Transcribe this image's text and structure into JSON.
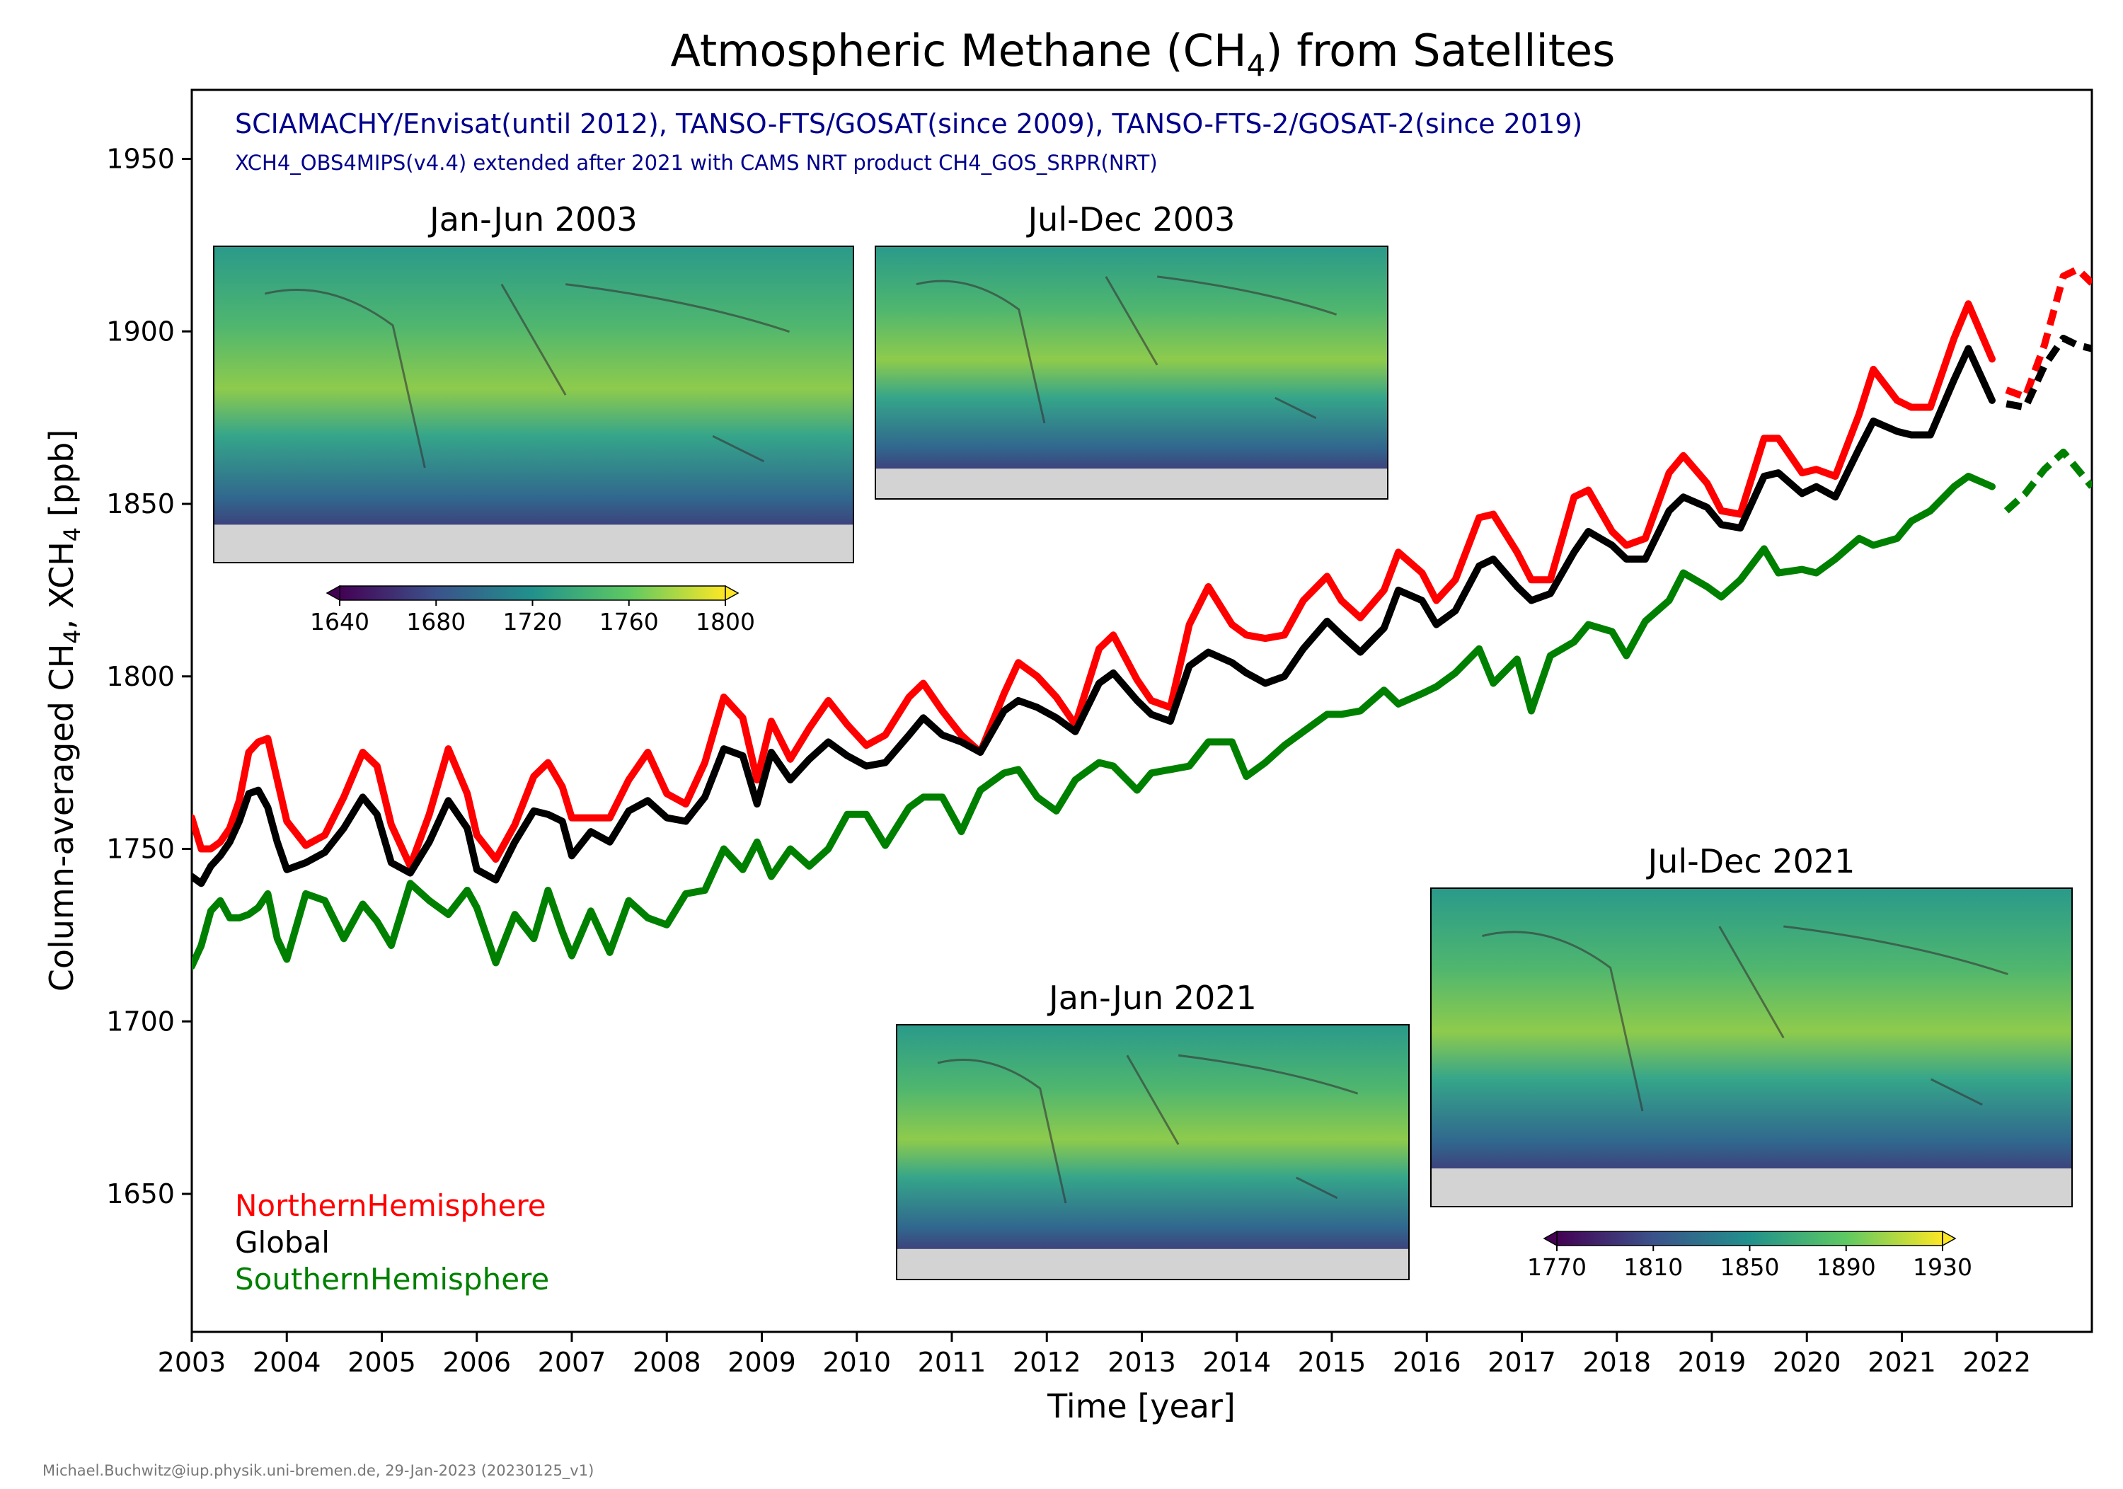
{
  "chart_data": {
    "type": "line",
    "title_prefix": "Atmospheric Methane (CH",
    "title_sub": "4",
    "title_suffix": ") from Satellites",
    "subtitle": "SCIAMACHY/Envisat(until 2012), TANSO-FTS/GOSAT(since 2009), TANSO-FTS-2/GOSAT-2(since 2019)",
    "subtitle2": "XCH4_OBS4MIPS(v4.4) extended after 2021 with CAMS NRT product CH4_GOS_SRPR(NRT)",
    "xlabel": "Time [year]",
    "ylabel_parts": [
      "Column-averaged CH",
      "4",
      ", XCH",
      "4",
      " [ppb]"
    ],
    "xlim": [
      2003,
      2023.0
    ],
    "ylim": [
      1610,
      1970
    ],
    "xticks": [
      "2003",
      "2004",
      "2005",
      "2006",
      "2007",
      "2008",
      "2009",
      "2010",
      "2011",
      "2012",
      "2013",
      "2014",
      "2015",
      "2016",
      "2017",
      "2018",
      "2019",
      "2020",
      "2021",
      "2022"
    ],
    "yticks": [
      1650,
      1700,
      1750,
      1800,
      1850,
      1900,
      1950
    ],
    "legend": [
      {
        "label": "NorthernHemisphere",
        "color": "#ff0000"
      },
      {
        "label": "Global",
        "color": "#000000"
      },
      {
        "label": "SouthernHemisphere",
        "color": "#008000"
      }
    ],
    "legend_position": "lower-left",
    "dashed_after": 2022.0,
    "series": [
      {
        "name": "NorthernHemisphere",
        "color": "#ff0000",
        "x": [
          2003.0,
          2003.1,
          2003.2,
          2003.3,
          2003.4,
          2003.5,
          2003.6,
          2003.7,
          2003.8,
          2003.9,
          2004.0,
          2004.2,
          2004.4,
          2004.6,
          2004.8,
          2004.95,
          2005.1,
          2005.3,
          2005.5,
          2005.7,
          2005.9,
          2006.0,
          2006.2,
          2006.4,
          2006.6,
          2006.75,
          2006.9,
          2007.0,
          2007.2,
          2007.4,
          2007.6,
          2007.8,
          2008.0,
          2008.2,
          2008.4,
          2008.6,
          2008.8,
          2008.95,
          2009.1,
          2009.3,
          2009.5,
          2009.7,
          2009.9,
          2010.1,
          2010.3,
          2010.55,
          2010.7,
          2010.9,
          2011.1,
          2011.3,
          2011.55,
          2011.7,
          2011.9,
          2012.1,
          2012.3,
          2012.55,
          2012.7,
          2012.95,
          2013.1,
          2013.3,
          2013.5,
          2013.7,
          2013.95,
          2014.1,
          2014.3,
          2014.5,
          2014.7,
          2014.95,
          2015.1,
          2015.3,
          2015.55,
          2015.7,
          2015.95,
          2016.1,
          2016.3,
          2016.55,
          2016.7,
          2016.95,
          2017.1,
          2017.3,
          2017.55,
          2017.7,
          2017.95,
          2018.1,
          2018.3,
          2018.55,
          2018.7,
          2018.95,
          2019.1,
          2019.3,
          2019.55,
          2019.7,
          2019.95,
          2020.1,
          2020.3,
          2020.55,
          2020.7,
          2020.95,
          2021.1,
          2021.3,
          2021.55,
          2021.7,
          2021.95,
          2022.1,
          2022.3,
          2022.5,
          2022.7,
          2022.85,
          2023.0
        ],
        "y": [
          1759,
          1750,
          1750,
          1752,
          1756,
          1764,
          1778,
          1781,
          1782,
          1770,
          1758,
          1751,
          1754,
          1765,
          1778,
          1774,
          1757,
          1745,
          1760,
          1779,
          1766,
          1754,
          1747,
          1757,
          1771,
          1775,
          1768,
          1759,
          1759,
          1759,
          1770,
          1778,
          1766,
          1763,
          1775,
          1794,
          1788,
          1770,
          1787,
          1776,
          1785,
          1793,
          1786,
          1780,
          1783,
          1794,
          1798,
          1790,
          1783,
          1778,
          1795,
          1804,
          1800,
          1794,
          1786,
          1808,
          1812,
          1799,
          1793,
          1791,
          1815,
          1826,
          1815,
          1812,
          1811,
          1812,
          1822,
          1829,
          1822,
          1817,
          1825,
          1836,
          1830,
          1822,
          1828,
          1846,
          1847,
          1836,
          1828,
          1828,
          1852,
          1854,
          1842,
          1838,
          1840,
          1859,
          1864,
          1856,
          1848,
          1847,
          1869,
          1869,
          1859,
          1860,
          1858,
          1876,
          1889,
          1880,
          1878,
          1878,
          1898,
          1908,
          1892,
          1883,
          1881,
          1896,
          1916,
          1918,
          1914
        ]
      },
      {
        "name": "Global",
        "color": "#000000",
        "x": [
          2003.0,
          2003.1,
          2003.2,
          2003.3,
          2003.4,
          2003.5,
          2003.6,
          2003.7,
          2003.8,
          2003.9,
          2004.0,
          2004.2,
          2004.4,
          2004.6,
          2004.8,
          2004.95,
          2005.1,
          2005.3,
          2005.5,
          2005.7,
          2005.9,
          2006.0,
          2006.2,
          2006.4,
          2006.6,
          2006.75,
          2006.9,
          2007.0,
          2007.2,
          2007.4,
          2007.6,
          2007.8,
          2008.0,
          2008.2,
          2008.4,
          2008.6,
          2008.8,
          2008.95,
          2009.1,
          2009.3,
          2009.5,
          2009.7,
          2009.9,
          2010.1,
          2010.3,
          2010.55,
          2010.7,
          2010.9,
          2011.1,
          2011.3,
          2011.55,
          2011.7,
          2011.9,
          2012.1,
          2012.3,
          2012.55,
          2012.7,
          2012.95,
          2013.1,
          2013.3,
          2013.5,
          2013.7,
          2013.95,
          2014.1,
          2014.3,
          2014.5,
          2014.7,
          2014.95,
          2015.1,
          2015.3,
          2015.55,
          2015.7,
          2015.95,
          2016.1,
          2016.3,
          2016.55,
          2016.7,
          2016.95,
          2017.1,
          2017.3,
          2017.55,
          2017.7,
          2017.95,
          2018.1,
          2018.3,
          2018.55,
          2018.7,
          2018.95,
          2019.1,
          2019.3,
          2019.55,
          2019.7,
          2019.95,
          2020.1,
          2020.3,
          2020.55,
          2020.7,
          2020.95,
          2021.1,
          2021.3,
          2021.55,
          2021.7,
          2021.95,
          2022.1,
          2022.3,
          2022.5,
          2022.7,
          2022.85,
          2023.0
        ],
        "y": [
          1742,
          1740,
          1745,
          1748,
          1752,
          1758,
          1766,
          1767,
          1762,
          1752,
          1744,
          1746,
          1749,
          1756,
          1765,
          1760,
          1746,
          1743,
          1752,
          1764,
          1756,
          1744,
          1741,
          1752,
          1761,
          1760,
          1758,
          1748,
          1755,
          1752,
          1761,
          1764,
          1759,
          1758,
          1765,
          1779,
          1777,
          1763,
          1778,
          1770,
          1776,
          1781,
          1777,
          1774,
          1775,
          1783,
          1788,
          1783,
          1781,
          1778,
          1790,
          1793,
          1791,
          1788,
          1784,
          1798,
          1801,
          1793,
          1789,
          1787,
          1803,
          1807,
          1804,
          1801,
          1798,
          1800,
          1808,
          1816,
          1812,
          1807,
          1814,
          1825,
          1822,
          1815,
          1819,
          1832,
          1834,
          1826,
          1822,
          1824,
          1836,
          1842,
          1838,
          1834,
          1834,
          1848,
          1852,
          1849,
          1844,
          1843,
          1858,
          1859,
          1853,
          1855,
          1852,
          1866,
          1874,
          1871,
          1870,
          1870,
          1886,
          1895,
          1880,
          1879,
          1878,
          1890,
          1898,
          1896,
          1895
        ]
      },
      {
        "name": "SouthernHemisphere",
        "color": "#008000",
        "x": [
          2003.0,
          2003.1,
          2003.2,
          2003.3,
          2003.4,
          2003.5,
          2003.6,
          2003.7,
          2003.8,
          2003.9,
          2004.0,
          2004.2,
          2004.4,
          2004.6,
          2004.8,
          2004.95,
          2005.1,
          2005.3,
          2005.5,
          2005.7,
          2005.9,
          2006.0,
          2006.2,
          2006.4,
          2006.6,
          2006.75,
          2006.9,
          2007.0,
          2007.2,
          2007.4,
          2007.6,
          2007.8,
          2008.0,
          2008.2,
          2008.4,
          2008.6,
          2008.8,
          2008.95,
          2009.1,
          2009.3,
          2009.5,
          2009.7,
          2009.9,
          2010.1,
          2010.3,
          2010.55,
          2010.7,
          2010.9,
          2011.1,
          2011.3,
          2011.55,
          2011.7,
          2011.9,
          2012.1,
          2012.3,
          2012.55,
          2012.7,
          2012.95,
          2013.1,
          2013.3,
          2013.5,
          2013.7,
          2013.95,
          2014.1,
          2014.3,
          2014.5,
          2014.7,
          2014.95,
          2015.1,
          2015.3,
          2015.55,
          2015.7,
          2015.95,
          2016.1,
          2016.3,
          2016.55,
          2016.7,
          2016.95,
          2017.1,
          2017.3,
          2017.55,
          2017.7,
          2017.95,
          2018.1,
          2018.3,
          2018.55,
          2018.7,
          2018.95,
          2019.1,
          2019.3,
          2019.55,
          2019.7,
          2019.95,
          2020.1,
          2020.3,
          2020.55,
          2020.7,
          2020.95,
          2021.1,
          2021.3,
          2021.55,
          2021.7,
          2021.95,
          2022.1,
          2022.3,
          2022.5,
          2022.7,
          2022.85,
          2023.0
        ],
        "y": [
          1716,
          1722,
          1732,
          1735,
          1730,
          1730,
          1731,
          1733,
          1737,
          1724,
          1718,
          1737,
          1735,
          1724,
          1734,
          1729,
          1722,
          1740,
          1735,
          1731,
          1738,
          1733,
          1717,
          1731,
          1724,
          1738,
          1726,
          1719,
          1732,
          1720,
          1735,
          1730,
          1728,
          1737,
          1738,
          1750,
          1744,
          1752,
          1742,
          1750,
          1745,
          1750,
          1760,
          1760,
          1751,
          1762,
          1765,
          1765,
          1755,
          1767,
          1772,
          1773,
          1765,
          1761,
          1770,
          1775,
          1774,
          1767,
          1772,
          1773,
          1774,
          1781,
          1781,
          1771,
          1775,
          1780,
          1784,
          1789,
          1789,
          1790,
          1796,
          1792,
          1795,
          1797,
          1801,
          1808,
          1798,
          1805,
          1790,
          1806,
          1810,
          1815,
          1813,
          1806,
          1816,
          1822,
          1830,
          1826,
          1823,
          1828,
          1837,
          1830,
          1831,
          1830,
          1834,
          1840,
          1838,
          1840,
          1845,
          1848,
          1855,
          1858,
          1855,
          1848,
          1853,
          1860,
          1865,
          1860,
          1855
        ]
      }
    ],
    "inset_maps": [
      {
        "title": "Jan-Jun 2003"
      },
      {
        "title": "Jul-Dec 2003"
      },
      {
        "title": "Jan-Jun 2021"
      },
      {
        "title": "Jul-Dec 2021"
      }
    ],
    "colorbars": [
      {
        "ticks": [
          "1640",
          "1680",
          "1720",
          "1760",
          "1800"
        ]
      },
      {
        "ticks": [
          "1770",
          "1810",
          "1850",
          "1890",
          "1930"
        ]
      }
    ],
    "footer": "Michael.Buchwitz@iup.physik.uni-bremen.de, 29-Jan-2023 (20230125_v1)"
  }
}
